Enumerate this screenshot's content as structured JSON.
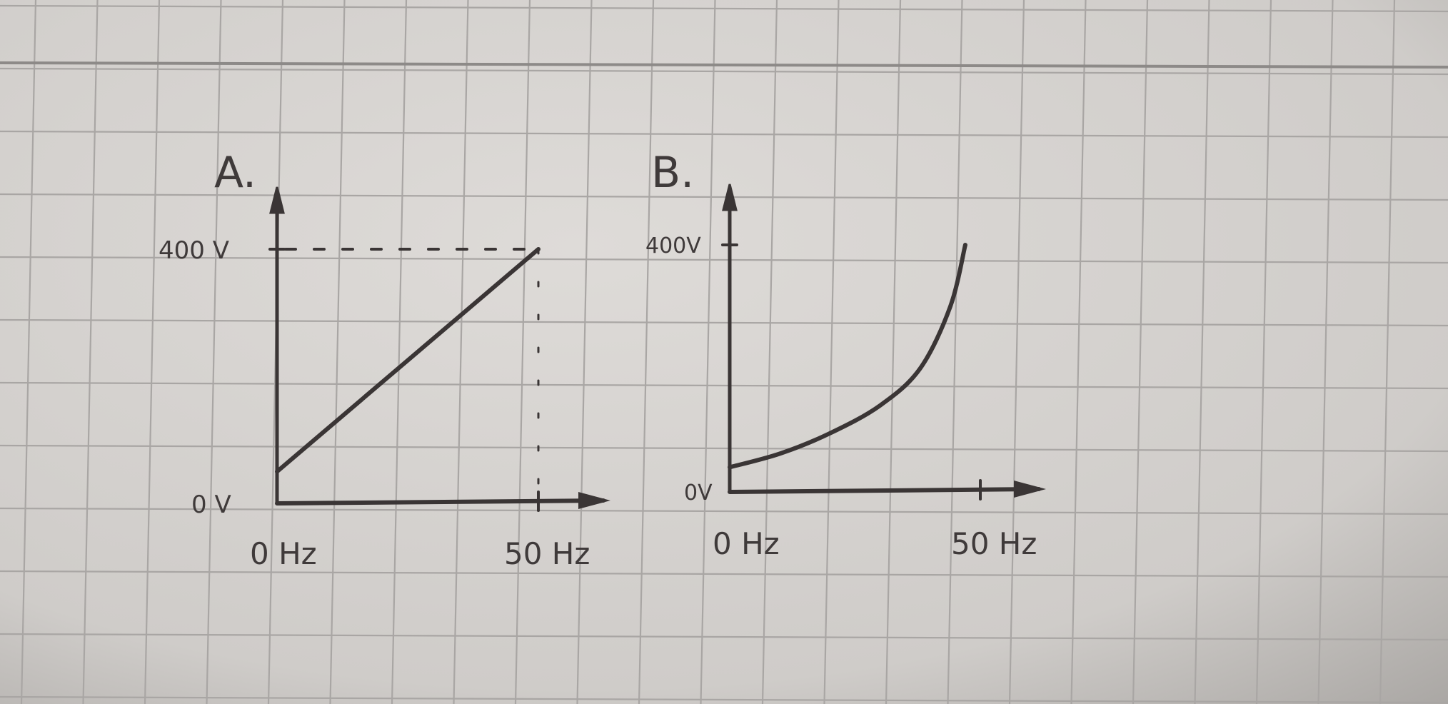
{
  "chart_data": [
    {
      "type": "line",
      "title": "A.",
      "x_tick_labels": [
        "0 Hz",
        "50 Hz"
      ],
      "y_tick_labels": [
        "0 V",
        "400 V"
      ],
      "xlim": [
        0,
        50
      ],
      "ylim": [
        0,
        400
      ],
      "guides": "dashed lines from the 400 V mark and 50 Hz mark to the end point",
      "grid": true,
      "series": [
        {
          "x": [
            0,
            50
          ],
          "y": [
            50,
            400
          ]
        }
      ]
    },
    {
      "type": "line",
      "title": "B.",
      "x_tick_labels": [
        "0 Hz",
        "50 Hz"
      ],
      "y_tick_labels": [
        "0V",
        "400V"
      ],
      "xlim": [
        0,
        50
      ],
      "ylim": [
        0,
        400
      ],
      "grid": true,
      "series": [
        {
          "x": [
            0,
            10,
            20,
            30,
            38,
            44,
            47
          ],
          "y": [
            40,
            62,
            95,
            140,
            200,
            300,
            400
          ]
        }
      ]
    }
  ],
  "colors": {
    "paper": "#d4d1ce",
    "grid": "#a9a6a4",
    "ink": "#3a3535"
  }
}
